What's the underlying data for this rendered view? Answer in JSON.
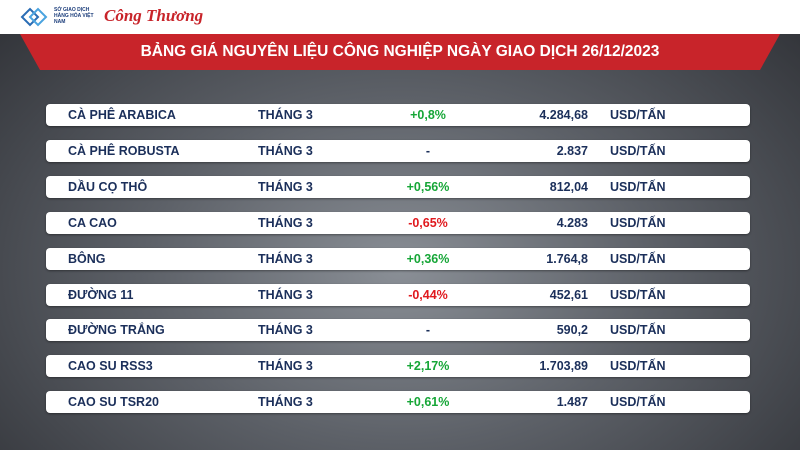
{
  "header": {
    "logo_text": "SỞ GIAO DỊCH HÀNG HÓA VIỆT NAM",
    "brand": "Công Thương",
    "title": "BẢNG GIÁ NGUYÊN LIỆU CÔNG NGHIỆP NGÀY GIAO DỊCH 26/12/2023"
  },
  "table": {
    "rows": [
      [
        "CÀ PHÊ ARABICA",
        "THÁNG 3",
        "+0,8%",
        "4.284,68",
        "USD/TẤN"
      ],
      [
        "CÀ PHÊ ROBUSTA",
        "THÁNG 3",
        "-",
        "2.837",
        "USD/TẤN"
      ],
      [
        "DẦU CỌ THÔ",
        "THÁNG 3",
        "+0,56%",
        "812,04",
        "USD/TẤN"
      ],
      [
        "CA CAO",
        "THÁNG 3",
        "-0,65%",
        "4.283",
        "USD/TẤN"
      ],
      [
        "BÔNG",
        "THÁNG 3",
        "+0,36%",
        "1.764,8",
        "USD/TẤN"
      ],
      [
        "ĐƯỜNG 11",
        "THÁNG 3",
        "-0,44%",
        "452,61",
        "USD/TẤN"
      ],
      [
        "ĐƯỜNG TRẮNG",
        "THÁNG 3",
        "-",
        "590,2",
        "USD/TẤN"
      ],
      [
        "CAO SU RSS3",
        "THÁNG 3",
        "+2,17%",
        "1.703,89",
        "USD/TẤN"
      ],
      [
        "CAO SU TSR20",
        "THÁNG 3",
        "+0,61%",
        "1.487",
        "USD/TẤN"
      ]
    ]
  }
}
